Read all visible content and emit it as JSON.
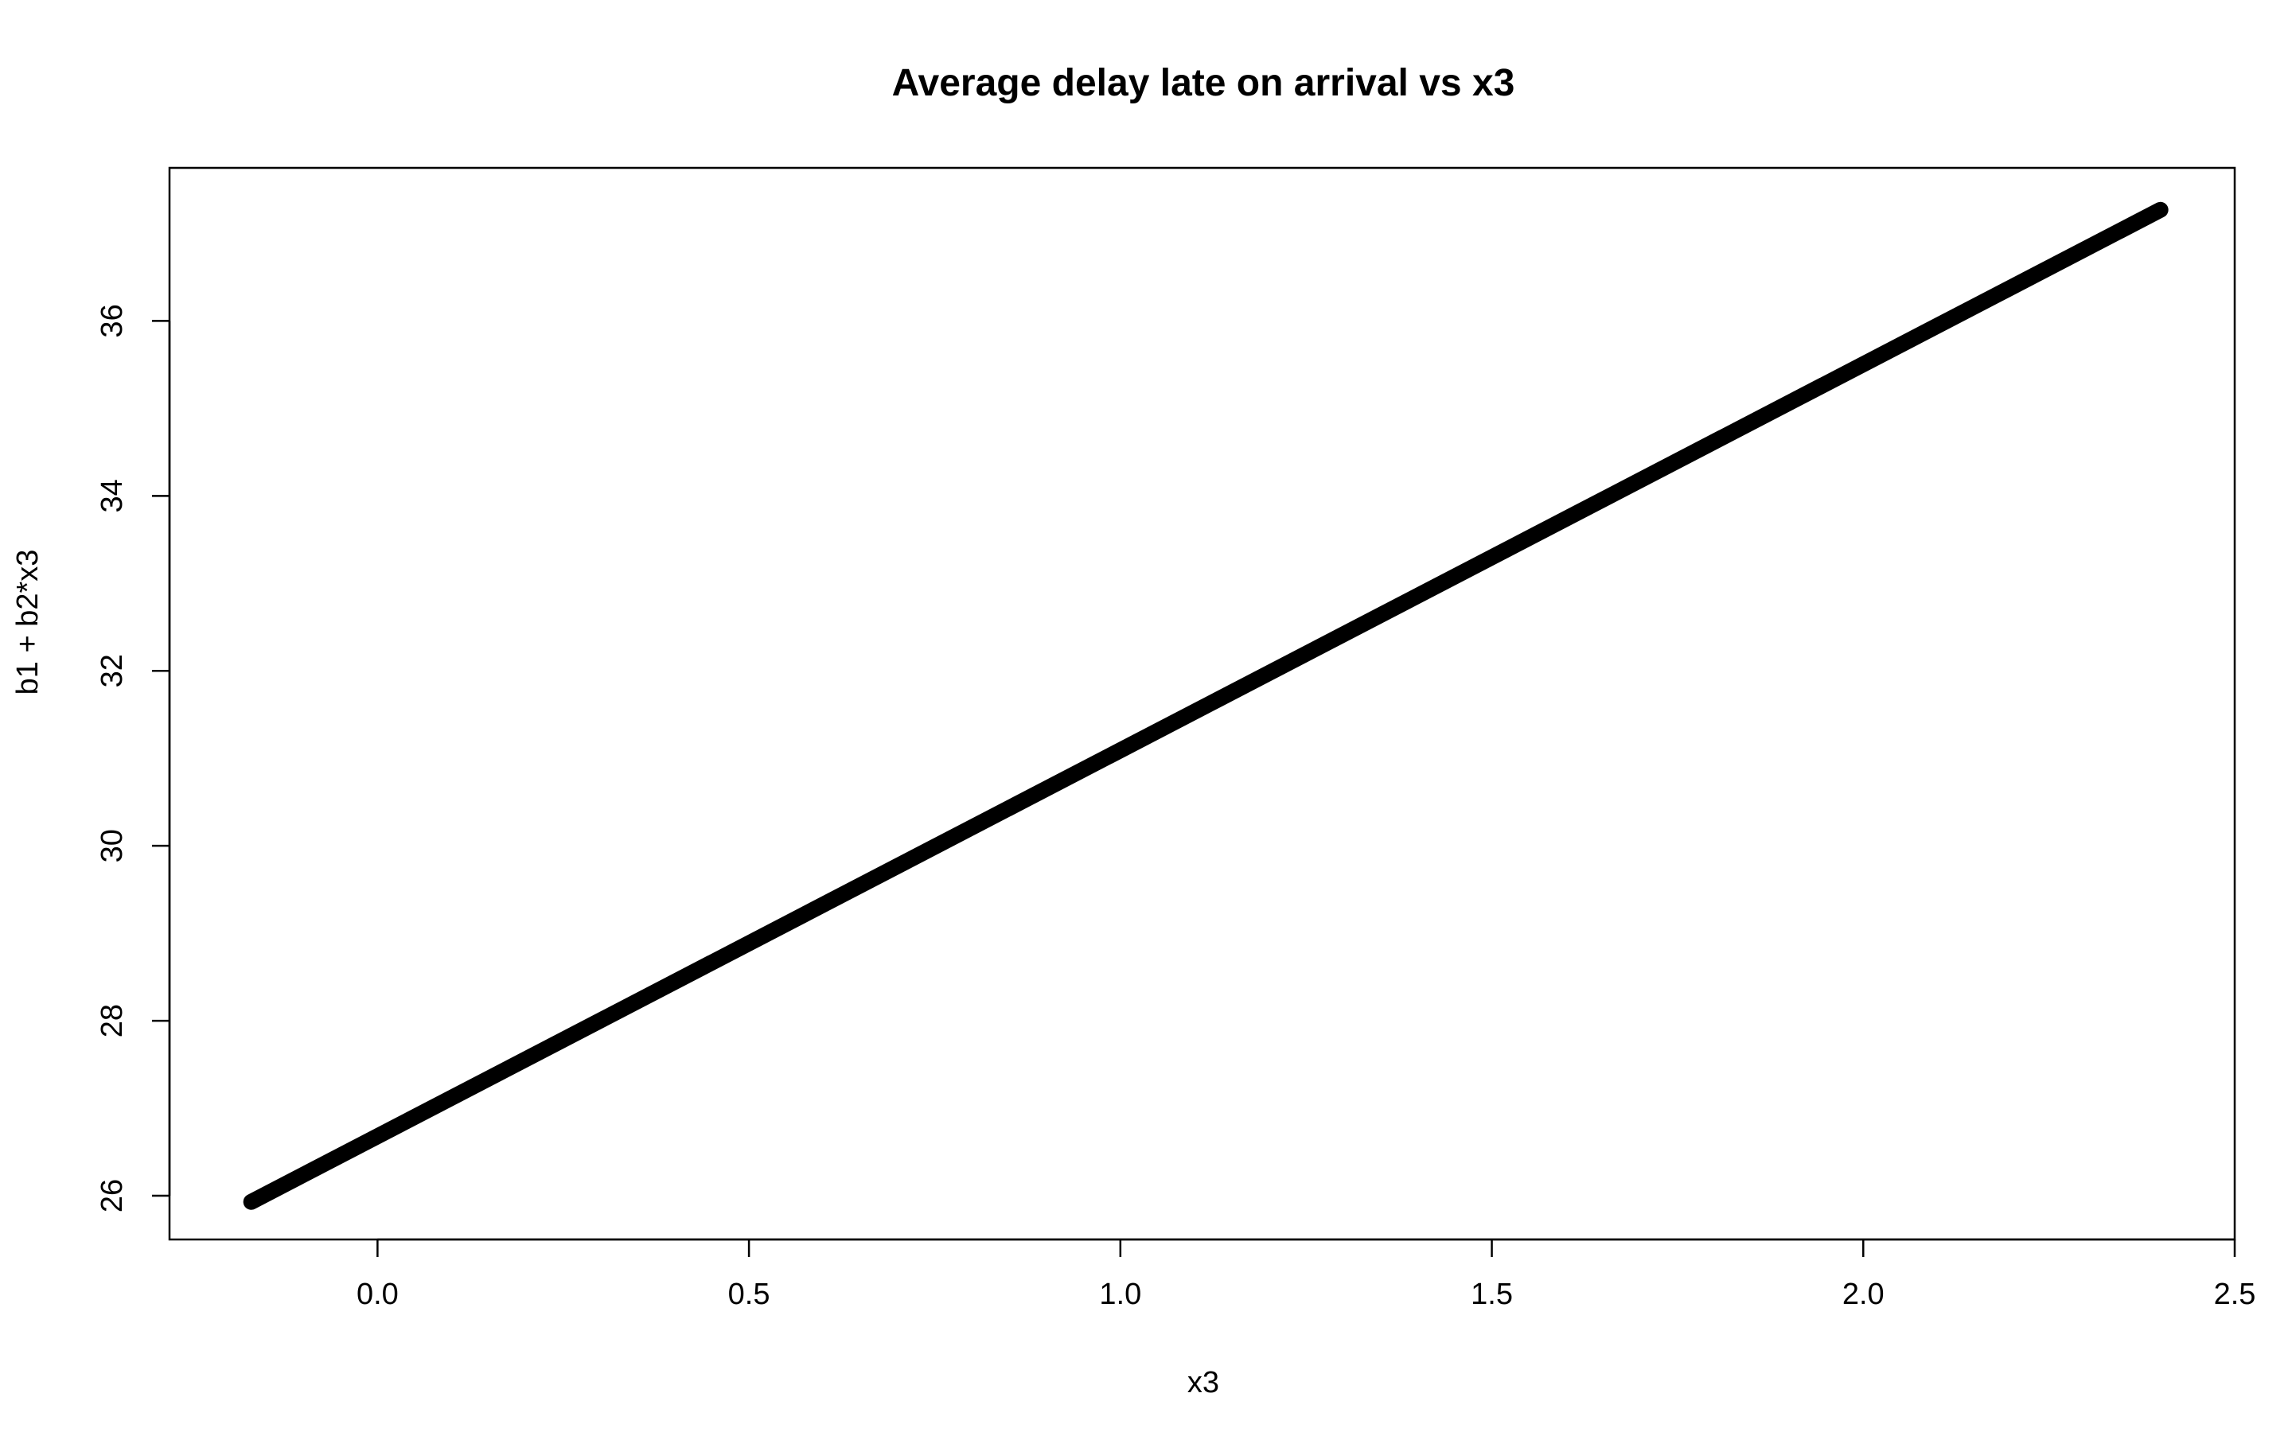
{
  "chart_data": {
    "type": "line",
    "title": "Average delay late on arrival vs x3",
    "xlabel": "x3",
    "ylabel": "b1 + b2*x3",
    "x_ticks": [
      "0.0",
      "0.5",
      "1.0",
      "1.5",
      "2.0",
      "2.5"
    ],
    "y_ticks": [
      "26",
      "28",
      "30",
      "32",
      "34",
      "36"
    ],
    "xlim": [
      -0.28,
      2.5
    ],
    "ylim": [
      25.5,
      37.75
    ],
    "grid": false,
    "legend": "none",
    "line_color": "#000000",
    "series": [
      {
        "x": [
          -0.17,
          2.4
        ],
        "y": [
          25.93,
          37.27
        ]
      }
    ]
  }
}
